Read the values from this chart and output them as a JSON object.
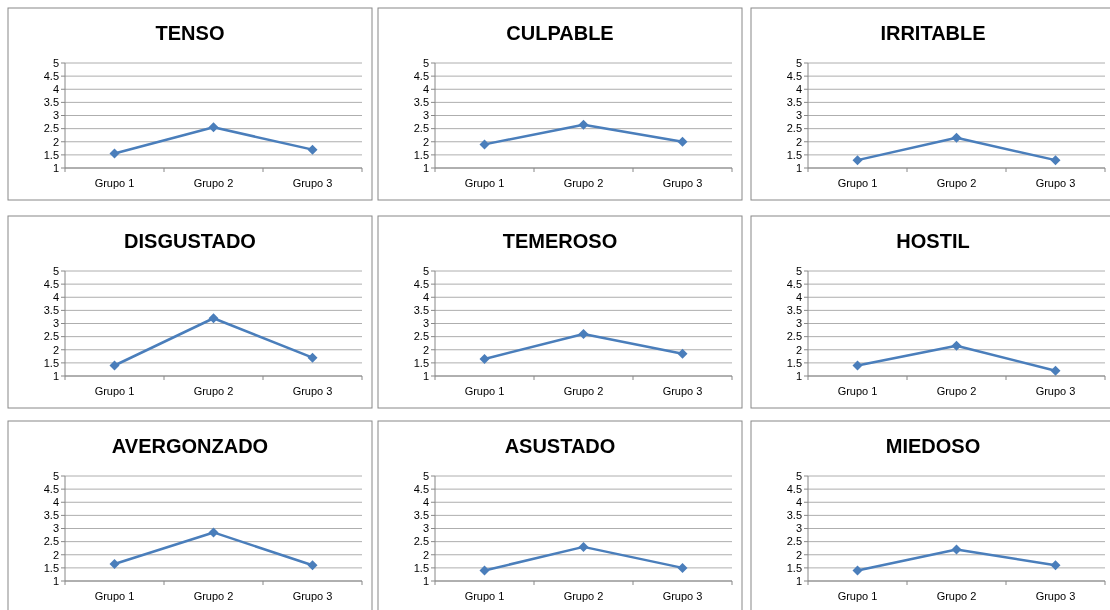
{
  "chart_data": [
    {
      "type": "line",
      "title": "TENSO",
      "categories": [
        "Grupo 1",
        "Grupo 2",
        "Grupo 3"
      ],
      "series": [
        {
          "color": "#4a7ebb",
          "values": [
            1.55,
            2.55,
            1.7
          ]
        }
      ],
      "ylim": [
        1,
        5
      ],
      "yticks": [
        1,
        1.5,
        2,
        2.5,
        3,
        3.5,
        4,
        4.5,
        5
      ],
      "grid": "y",
      "marker": "diamond"
    },
    {
      "type": "line",
      "title": "CULPABLE",
      "categories": [
        "Grupo 1",
        "Grupo 2",
        "Grupo 3"
      ],
      "series": [
        {
          "color": "#4a7ebb",
          "values": [
            1.9,
            2.65,
            2.0
          ]
        }
      ],
      "ylim": [
        1,
        5
      ],
      "yticks": [
        1,
        1.5,
        2,
        2.5,
        3,
        3.5,
        4,
        4.5,
        5
      ],
      "grid": "y",
      "marker": "diamond"
    },
    {
      "type": "line",
      "title": "IRRITABLE",
      "categories": [
        "Grupo 1",
        "Grupo 2",
        "Grupo 3"
      ],
      "series": [
        {
          "color": "#4a7ebb",
          "values": [
            1.3,
            2.15,
            1.3
          ]
        }
      ],
      "ylim": [
        1,
        5
      ],
      "yticks": [
        1,
        1.5,
        2,
        2.5,
        3,
        3.5,
        4,
        4.5,
        5
      ],
      "grid": "y",
      "marker": "diamond"
    },
    {
      "type": "line",
      "title": "DISGUSTADO",
      "categories": [
        "Grupo 1",
        "Grupo 2",
        "Grupo 3"
      ],
      "series": [
        {
          "color": "#4a7ebb",
          "values": [
            1.4,
            3.2,
            1.7
          ]
        }
      ],
      "ylim": [
        1,
        5
      ],
      "yticks": [
        1,
        1.5,
        2,
        2.5,
        3,
        3.5,
        4,
        4.5,
        5
      ],
      "grid": "y",
      "marker": "diamond"
    },
    {
      "type": "line",
      "title": "TEMEROSO",
      "categories": [
        "Grupo 1",
        "Grupo 2",
        "Grupo 3"
      ],
      "series": [
        {
          "color": "#4a7ebb",
          "values": [
            1.65,
            2.6,
            1.85
          ]
        }
      ],
      "ylim": [
        1,
        5
      ],
      "yticks": [
        1,
        1.5,
        2,
        2.5,
        3,
        3.5,
        4,
        4.5,
        5
      ],
      "grid": "y",
      "marker": "diamond"
    },
    {
      "type": "line",
      "title": "HOSTIL",
      "categories": [
        "Grupo 1",
        "Grupo 2",
        "Grupo 3"
      ],
      "series": [
        {
          "color": "#4a7ebb",
          "values": [
            1.4,
            2.15,
            1.2
          ]
        }
      ],
      "ylim": [
        1,
        5
      ],
      "yticks": [
        1,
        1.5,
        2,
        2.5,
        3,
        3.5,
        4,
        4.5,
        5
      ],
      "grid": "y",
      "marker": "diamond"
    },
    {
      "type": "line",
      "title": "AVERGONZADO",
      "categories": [
        "Grupo 1",
        "Grupo 2",
        "Grupo 3"
      ],
      "series": [
        {
          "color": "#4a7ebb",
          "values": [
            1.65,
            2.85,
            1.6
          ]
        }
      ],
      "ylim": [
        1,
        5
      ],
      "yticks": [
        1,
        1.5,
        2,
        2.5,
        3,
        3.5,
        4,
        4.5,
        5
      ],
      "grid": "y",
      "marker": "diamond"
    },
    {
      "type": "line",
      "title": "ASUSTADO",
      "categories": [
        "Grupo 1",
        "Grupo 2",
        "Grupo 3"
      ],
      "series": [
        {
          "color": "#4a7ebb",
          "values": [
            1.4,
            2.3,
            1.5
          ]
        }
      ],
      "ylim": [
        1,
        5
      ],
      "yticks": [
        1,
        1.5,
        2,
        2.5,
        3,
        3.5,
        4,
        4.5,
        5
      ],
      "grid": "y",
      "marker": "diamond"
    },
    {
      "type": "line",
      "title": "MIEDOSO",
      "categories": [
        "Grupo 1",
        "Grupo 2",
        "Grupo 3"
      ],
      "series": [
        {
          "color": "#4a7ebb",
          "values": [
            1.4,
            2.2,
            1.6
          ]
        }
      ],
      "ylim": [
        1,
        5
      ],
      "yticks": [
        1,
        1.5,
        2,
        2.5,
        3,
        3.5,
        4,
        4.5,
        5
      ],
      "grid": "y",
      "marker": "diamond"
    }
  ]
}
